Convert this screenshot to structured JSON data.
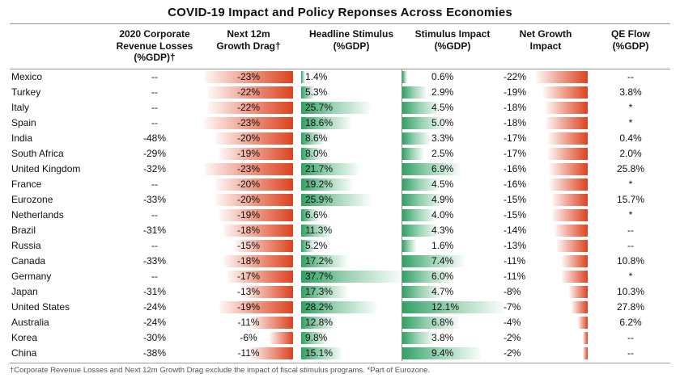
{
  "title": "COVID-19 Impact and Policy Reponses Across Economies",
  "footnote": "†Corporate Revenue Losses and Next 12m Growth Drag exclude the impact of fiscal stimulus programs. *Part of Eurozone.",
  "colors": {
    "red": "#dc421f",
    "green": "#2fa263"
  },
  "chart_data": {
    "type": "table",
    "title": "COVID-19 Impact and Policy Reponses Across Economies",
    "legend_position": "none",
    "grid": false,
    "columns": [
      {
        "key": "country",
        "label": ""
      },
      {
        "key": "revenue",
        "label": "2020 Corporate\nRevenue Losses\n(%GDP)†"
      },
      {
        "key": "drag",
        "label": "Next 12m\nGrowth Drag†",
        "bar": "red",
        "bar_align": "right",
        "max": 23
      },
      {
        "key": "stimulus",
        "label": "Headline Stimulus\n(%GDP)",
        "bar": "green",
        "bar_align": "left",
        "max": 37.7
      },
      {
        "key": "impact",
        "label": "Stimulus Impact\n(%GDP)",
        "bar": "green",
        "bar_align": "left",
        "max": 12.1
      },
      {
        "key": "net",
        "label": "Net Growth\nImpact",
        "bar": "red",
        "bar_align": "right",
        "max": 22
      },
      {
        "key": "qe",
        "label": "QE Flow\n(%GDP)"
      }
    ],
    "rows": [
      {
        "country": "Mexico",
        "revenue": "--",
        "drag": "-23%",
        "stimulus": "1.4%",
        "impact": "0.6%",
        "net": "-22%",
        "qe": "--"
      },
      {
        "country": "Turkey",
        "revenue": "--",
        "drag": "-22%",
        "stimulus": "5.3%",
        "impact": "2.9%",
        "net": "-19%",
        "qe": "3.8%"
      },
      {
        "country": "Italy",
        "revenue": "--",
        "drag": "-22%",
        "stimulus": "25.7%",
        "impact": "4.5%",
        "net": "-18%",
        "qe": "*"
      },
      {
        "country": "Spain",
        "revenue": "--",
        "drag": "-23%",
        "stimulus": "18.6%",
        "impact": "5.0%",
        "net": "-18%",
        "qe": "*"
      },
      {
        "country": "India",
        "revenue": "-48%",
        "drag": "-20%",
        "stimulus": "8.6%",
        "impact": "3.3%",
        "net": "-17%",
        "qe": "0.4%"
      },
      {
        "country": "South Africa",
        "revenue": "-29%",
        "drag": "-19%",
        "stimulus": "8.0%",
        "impact": "2.5%",
        "net": "-17%",
        "qe": "2.0%"
      },
      {
        "country": "United Kingdom",
        "revenue": "-32%",
        "drag": "-23%",
        "stimulus": "21.7%",
        "impact": "6.9%",
        "net": "-16%",
        "qe": "25.8%"
      },
      {
        "country": "France",
        "revenue": "--",
        "drag": "-20%",
        "stimulus": "19.2%",
        "impact": "4.5%",
        "net": "-16%",
        "qe": "*"
      },
      {
        "country": "Eurozone",
        "revenue": "-33%",
        "drag": "-20%",
        "stimulus": "25.9%",
        "impact": "4.9%",
        "net": "-15%",
        "qe": "15.7%"
      },
      {
        "country": "Netherlands",
        "revenue": "--",
        "drag": "-19%",
        "stimulus": "6.6%",
        "impact": "4.0%",
        "net": "-15%",
        "qe": "*"
      },
      {
        "country": "Brazil",
        "revenue": "-31%",
        "drag": "-18%",
        "stimulus": "11.3%",
        "impact": "4.3%",
        "net": "-14%",
        "qe": "--"
      },
      {
        "country": "Russia",
        "revenue": "--",
        "drag": "-15%",
        "stimulus": "5.2%",
        "impact": "1.6%",
        "net": "-13%",
        "qe": "--"
      },
      {
        "country": "Canada",
        "revenue": "-33%",
        "drag": "-18%",
        "stimulus": "17.2%",
        "impact": "7.4%",
        "net": "-11%",
        "qe": "10.8%"
      },
      {
        "country": "Germany",
        "revenue": "--",
        "drag": "-17%",
        "stimulus": "37.7%",
        "impact": "6.0%",
        "net": "-11%",
        "qe": "*"
      },
      {
        "country": "Japan",
        "revenue": "-31%",
        "drag": "-13%",
        "stimulus": "17.3%",
        "impact": "4.7%",
        "net": "-8%",
        "qe": "10.3%"
      },
      {
        "country": "United States",
        "revenue": "-24%",
        "drag": "-19%",
        "stimulus": "28.2%",
        "impact": "12.1%",
        "net": "-7%",
        "qe": "27.8%"
      },
      {
        "country": "Australia",
        "revenue": "-24%",
        "drag": "-11%",
        "stimulus": "12.8%",
        "impact": "6.8%",
        "net": "-4%",
        "qe": "6.2%"
      },
      {
        "country": "Korea",
        "revenue": "-30%",
        "drag": "-6%",
        "stimulus": "9.8%",
        "impact": "3.8%",
        "net": "-2%",
        "qe": "--"
      },
      {
        "country": "China",
        "revenue": "-38%",
        "drag": "-11%",
        "stimulus": "15.1%",
        "impact": "9.4%",
        "net": "-2%",
        "qe": "--"
      }
    ]
  }
}
